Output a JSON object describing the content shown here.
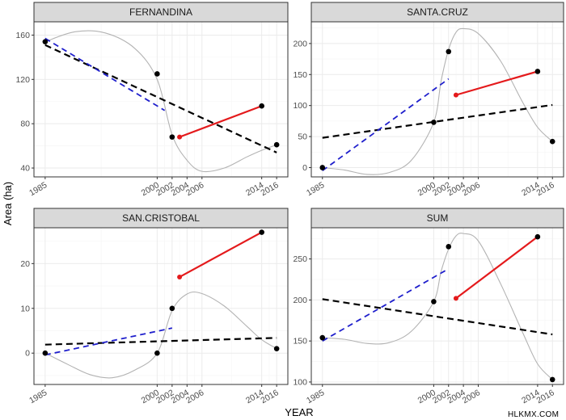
{
  "figure": {
    "xlabel": "YEAR",
    "ylabel": "Area (ha)",
    "watermark": "HLKMX.COM"
  },
  "colors": {
    "points": "#000000",
    "smooth": "#b3b3b3",
    "trend_all": "#000000",
    "trend_early": "#1f1fcc",
    "trend_late": "#e41a1c",
    "strip_fill": "#d9d9d9",
    "grid_major": "#ebebeb",
    "grid_minor": "#f5f5f5",
    "panel_border": "#333333"
  },
  "chart_data": [
    {
      "type": "scatter",
      "title": "FERNANDINA",
      "x": [
        1985,
        2000,
        2002,
        2014,
        2016
      ],
      "y": [
        154,
        125,
        68,
        96,
        61
      ],
      "ylim": [
        32,
        172
      ],
      "yticks": [
        40,
        80,
        120,
        160
      ],
      "xticks": [
        1985,
        2000,
        2002,
        2004,
        2006,
        2014,
        2016
      ],
      "smooth": [
        [
          1985,
          154
        ],
        [
          1989,
          163
        ],
        [
          1993,
          162
        ],
        [
          1997,
          148
        ],
        [
          2000,
          120
        ],
        [
          2002,
          70
        ],
        [
          2004,
          47
        ],
        [
          2006,
          37
        ],
        [
          2009,
          40
        ],
        [
          2012,
          50
        ],
        [
          2014,
          56
        ],
        [
          2016,
          61
        ]
      ],
      "trend_all": [
        [
          1985,
          151
        ],
        [
          2016,
          54
        ]
      ],
      "trend_early": [
        [
          1985,
          157
        ],
        [
          2001,
          92
        ]
      ],
      "trend_late": [
        [
          2003,
          68
        ],
        [
          2014,
          96
        ]
      ]
    },
    {
      "type": "scatter",
      "title": "SANTA.CRUZ",
      "x": [
        1985,
        2000,
        2002,
        2014,
        2016
      ],
      "y": [
        0,
        73,
        187,
        155,
        42
      ],
      "ylim": [
        -15,
        235
      ],
      "yticks": [
        0,
        50,
        100,
        150,
        200
      ],
      "xticks": [
        1985,
        2000,
        2002,
        2004,
        2006,
        2014,
        2016
      ],
      "smooth": [
        [
          1985,
          0
        ],
        [
          1988,
          -4
        ],
        [
          1991,
          -11
        ],
        [
          1994,
          -8
        ],
        [
          1997,
          12
        ],
        [
          2000,
          73
        ],
        [
          2001,
          140
        ],
        [
          2002,
          190
        ],
        [
          2003,
          218
        ],
        [
          2004,
          224
        ],
        [
          2006,
          216
        ],
        [
          2009,
          172
        ],
        [
          2012,
          105
        ],
        [
          2014,
          65
        ],
        [
          2016,
          42
        ]
      ],
      "trend_all": [
        [
          1985,
          48
        ],
        [
          2016,
          101
        ]
      ],
      "trend_early": [
        [
          1985,
          -5
        ],
        [
          2002,
          143
        ]
      ],
      "trend_late": [
        [
          2003,
          117
        ],
        [
          2014,
          155
        ]
      ]
    },
    {
      "type": "scatter",
      "title": "SAN.CRISTOBAL",
      "x": [
        1985,
        2000,
        2002,
        2014,
        2016
      ],
      "y": [
        0,
        0,
        10,
        27,
        1
      ],
      "ylim": [
        -7,
        28
      ],
      "yticks": [
        0,
        10,
        20
      ],
      "xticks": [
        1985,
        2000,
        2002,
        2004,
        2006,
        2014,
        2016
      ],
      "smooth": [
        [
          1985,
          0
        ],
        [
          1988,
          -2.5
        ],
        [
          1991,
          -4.8
        ],
        [
          1994,
          -5.5
        ],
        [
          1997,
          -3.8
        ],
        [
          2000,
          0
        ],
        [
          2002,
          9.5
        ],
        [
          2004,
          13.2
        ],
        [
          2006,
          13.3
        ],
        [
          2009,
          10.5
        ],
        [
          2012,
          6
        ],
        [
          2014,
          3
        ],
        [
          2016,
          1
        ]
      ],
      "trend_all": [
        [
          1985,
          1.9
        ],
        [
          2016,
          3.4
        ]
      ],
      "trend_early": [
        [
          1985,
          -0.4
        ],
        [
          2002,
          5.6
        ]
      ],
      "trend_late": [
        [
          2003,
          17
        ],
        [
          2014,
          27
        ]
      ]
    },
    {
      "type": "scatter",
      "title": "SUM",
      "x": [
        1985,
        2000,
        2002,
        2014,
        2016
      ],
      "y": [
        154,
        198,
        265,
        277,
        103
      ],
      "ylim": [
        97,
        288
      ],
      "yticks": [
        100,
        150,
        200,
        250
      ],
      "xticks": [
        1985,
        2000,
        2002,
        2004,
        2006,
        2014,
        2016
      ],
      "smooth": [
        [
          1985,
          154
        ],
        [
          1988,
          152
        ],
        [
          1991,
          147
        ],
        [
          1994,
          148
        ],
        [
          1997,
          162
        ],
        [
          2000,
          198
        ],
        [
          2001,
          235
        ],
        [
          2002,
          262
        ],
        [
          2003,
          278
        ],
        [
          2004,
          281
        ],
        [
          2006,
          272
        ],
        [
          2009,
          220
        ],
        [
          2012,
          160
        ],
        [
          2014,
          122
        ],
        [
          2016,
          103
        ]
      ],
      "trend_all": [
        [
          1985,
          201
        ],
        [
          2016,
          158
        ]
      ],
      "trend_early": [
        [
          1985,
          150
        ],
        [
          2002,
          238
        ]
      ],
      "trend_late": [
        [
          2003,
          202
        ],
        [
          2014,
          277
        ]
      ]
    }
  ]
}
